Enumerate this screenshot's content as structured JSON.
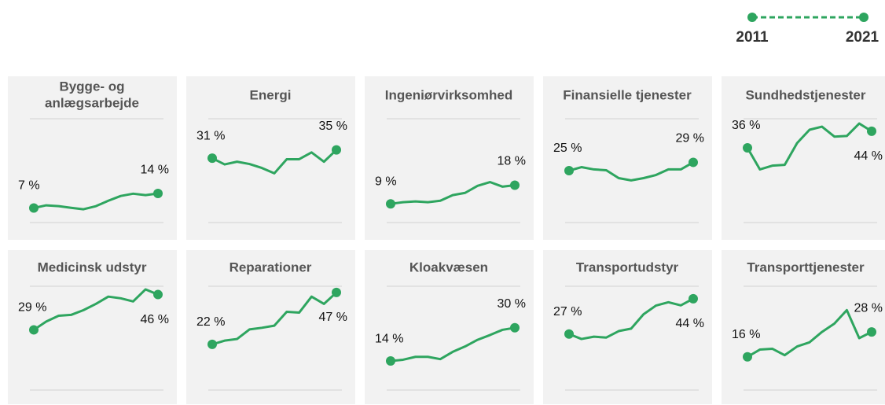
{
  "legend": {
    "start": "2011",
    "end": "2021",
    "color": "#2ea55f"
  },
  "chart_data": [
    {
      "type": "line",
      "title": "Bygge- og\nanlægsarbejde",
      "color": "#2ea55f",
      "ylim": [
        0,
        50
      ],
      "yticks": [
        0,
        50
      ],
      "grid": true,
      "end_label_side": "above",
      "values": [
        7,
        8.3,
        7.9,
        7.1,
        6.4,
        7.9,
        10.5,
        12.8,
        13.9,
        13.2,
        14
      ],
      "value_labels": [
        "7 %",
        null,
        null,
        null,
        null,
        null,
        null,
        null,
        null,
        null,
        "14 %"
      ]
    },
    {
      "type": "line",
      "title": "Energi",
      "color": "#2ea55f",
      "ylim": [
        0,
        50
      ],
      "yticks": [
        0,
        50
      ],
      "grid": true,
      "end_label_side": "above",
      "values": [
        31,
        28,
        29.3,
        28.2,
        26.3,
        23.7,
        30.5,
        30.5,
        33.8,
        29.3,
        35
      ],
      "value_labels": [
        "31 %",
        null,
        null,
        null,
        null,
        null,
        null,
        null,
        null,
        null,
        "35 %"
      ]
    },
    {
      "type": "line",
      "title": "Ingeniørvirksomhed",
      "color": "#2ea55f",
      "ylim": [
        0,
        50
      ],
      "yticks": [
        0,
        50
      ],
      "grid": true,
      "end_label_side": "above",
      "values": [
        9,
        9.8,
        10.2,
        9.8,
        10.5,
        13.2,
        14.3,
        17.7,
        19.5,
        17.3,
        18
      ],
      "value_labels": [
        "9 %",
        null,
        null,
        null,
        null,
        null,
        null,
        null,
        null,
        null,
        "18 %"
      ]
    },
    {
      "type": "line",
      "title": "Finansielle tjenester",
      "color": "#2ea55f",
      "ylim": [
        0,
        50
      ],
      "yticks": [
        0,
        50
      ],
      "grid": true,
      "end_label_side": "above",
      "values": [
        25,
        26.7,
        25.6,
        25.2,
        21.4,
        20.3,
        21.4,
        22.9,
        25.6,
        25.6,
        29
      ],
      "value_labels": [
        "25 %",
        null,
        null,
        null,
        null,
        null,
        null,
        null,
        null,
        null,
        "29 %"
      ]
    },
    {
      "type": "line",
      "title": "Sundhedstjenester",
      "color": "#2ea55f",
      "ylim": [
        0,
        50
      ],
      "yticks": [
        0,
        50
      ],
      "grid": true,
      "end_label_side": "below",
      "values": [
        36,
        25.6,
        27.4,
        27.8,
        38.3,
        44.7,
        46.2,
        41.4,
        41.7,
        47.7,
        44
      ],
      "value_labels": [
        "36 %",
        null,
        null,
        null,
        null,
        null,
        null,
        null,
        null,
        null,
        "44 %"
      ]
    },
    {
      "type": "line",
      "title": "Medicinsk udstyr",
      "color": "#2ea55f",
      "ylim": [
        0,
        50
      ],
      "yticks": [
        0,
        50
      ],
      "grid": true,
      "end_label_side": "below",
      "values": [
        29,
        33,
        35.8,
        36.2,
        38.5,
        41.5,
        45,
        44.2,
        42.7,
        48.5,
        46
      ],
      "value_labels": [
        "29 %",
        null,
        null,
        null,
        null,
        null,
        null,
        null,
        null,
        null,
        "46 %"
      ]
    },
    {
      "type": "line",
      "title": "Reparationer",
      "color": "#2ea55f",
      "ylim": [
        0,
        50
      ],
      "yticks": [
        0,
        50
      ],
      "grid": true,
      "end_label_side": "below",
      "values": [
        22,
        23.8,
        24.6,
        29.2,
        30,
        31,
        37.7,
        37.3,
        45,
        41.5,
        47
      ],
      "value_labels": [
        "22 %",
        null,
        null,
        null,
        null,
        null,
        null,
        null,
        null,
        null,
        "47 %"
      ]
    },
    {
      "type": "line",
      "title": "Kloakvæsen",
      "color": "#2ea55f",
      "ylim": [
        0,
        50
      ],
      "yticks": [
        0,
        50
      ],
      "grid": true,
      "end_label_side": "above",
      "values": [
        14,
        14.6,
        16,
        16,
        14.9,
        18.4,
        21,
        24.2,
        26.5,
        29,
        30
      ],
      "value_labels": [
        "14 %",
        null,
        null,
        null,
        null,
        null,
        null,
        null,
        null,
        null,
        "30 %"
      ]
    },
    {
      "type": "line",
      "title": "Transportudstyr",
      "color": "#2ea55f",
      "ylim": [
        0,
        50
      ],
      "yticks": [
        0,
        50
      ],
      "grid": true,
      "end_label_side": "below",
      "values": [
        27,
        24.6,
        25.7,
        25.3,
        28.4,
        29.6,
        36.5,
        40.7,
        42.3,
        40.8,
        44
      ],
      "value_labels": [
        "27 %",
        null,
        null,
        null,
        null,
        null,
        null,
        null,
        null,
        null,
        "44 %"
      ]
    },
    {
      "type": "line",
      "title": "Transporttjenester",
      "color": "#2ea55f",
      "ylim": [
        0,
        50
      ],
      "yticks": [
        0,
        50
      ],
      "grid": true,
      "end_label_side": "above",
      "values": [
        16,
        19.5,
        19.9,
        16.8,
        21,
        23,
        28,
        32,
        38.5,
        25,
        28
      ],
      "value_labels": [
        "16 %",
        null,
        null,
        null,
        null,
        null,
        null,
        null,
        null,
        null,
        "28 %"
      ]
    }
  ]
}
